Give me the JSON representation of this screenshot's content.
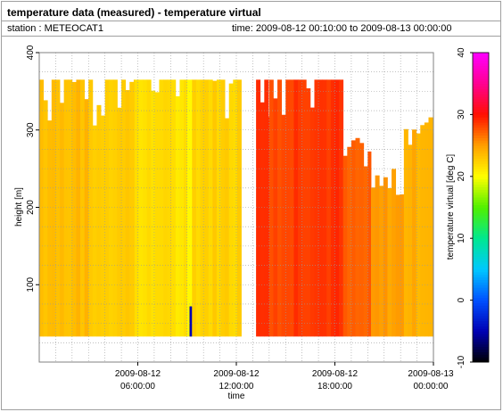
{
  "header": {
    "title": "temperature data (measured) - temperature virtual",
    "station": "station : METEOCAT1",
    "time_range": "time: 2009-08-12 00:10:00 to 2009-08-13 00:00:00"
  },
  "chart_data": {
    "type": "heatmap",
    "xlabel": "time",
    "ylabel": "height [m]",
    "ylim": [
      0,
      400
    ],
    "y_ticks": [
      100,
      200,
      300,
      400
    ],
    "x_range_hours": [
      0,
      24
    ],
    "x_ticks": [
      {
        "hour": 6,
        "line1": "2009-08-12",
        "line2": "06:00:00"
      },
      {
        "hour": 12,
        "line1": "2009-08-12",
        "line2": "12:00:00"
      },
      {
        "hour": 18,
        "line1": "2009-08-12",
        "line2": "18:00:00"
      },
      {
        "hour": 24,
        "line1": "2009-08-13",
        "line2": "00:00:00"
      }
    ],
    "grid": true,
    "colorbar": {
      "label": "temperature virtual [deg C]",
      "range": [
        -10,
        40
      ],
      "ticks": [
        -10,
        0,
        10,
        20,
        30,
        40
      ],
      "stops": [
        {
          "v": -10,
          "c": "#000000"
        },
        {
          "v": -5,
          "c": "#0000b4"
        },
        {
          "v": 0,
          "c": "#0050ff"
        },
        {
          "v": 5,
          "c": "#00c8ff"
        },
        {
          "v": 10,
          "c": "#00e890"
        },
        {
          "v": 15,
          "c": "#50f000"
        },
        {
          "v": 20,
          "c": "#ffff00"
        },
        {
          "v": 25,
          "c": "#ffa000"
        },
        {
          "v": 30,
          "c": "#ff1000"
        },
        {
          "v": 35,
          "c": "#ff0090"
        },
        {
          "v": 40,
          "c": "#ff00ff"
        }
      ]
    },
    "data_bottom_m": 33,
    "segments": [
      {
        "from": 0.0,
        "to": 3.0,
        "temp": 23.5,
        "top": 365
      },
      {
        "from": 3.0,
        "to": 5.8,
        "temp": 22.8,
        "top": 365
      },
      {
        "from": 5.8,
        "to": 9.0,
        "temp": 21.6,
        "top": 365
      },
      {
        "from": 9.0,
        "to": 9.3,
        "temp": 20.6,
        "top": 365
      },
      {
        "from": 9.3,
        "to": 12.3,
        "temp": 22.4,
        "top": 365
      },
      {
        "from": 13.2,
        "to": 14.0,
        "temp": 29.5,
        "top": 365
      },
      {
        "from": 14.0,
        "to": 15.5,
        "temp": 28.2,
        "top": 365
      },
      {
        "from": 15.5,
        "to": 18.5,
        "temp": 28.8,
        "top": 365
      },
      {
        "from": 18.5,
        "to": 20.2,
        "temp": 27.0,
        "top": 270
      },
      {
        "from": 20.2,
        "to": 22.2,
        "temp": 25.0,
        "top": 230
      },
      {
        "from": 22.2,
        "to": 24.0,
        "temp": 24.2,
        "top": 300
      }
    ],
    "cold_spot": {
      "from": 9.15,
      "to": 9.3,
      "temp": -5,
      "top": 72
    }
  }
}
